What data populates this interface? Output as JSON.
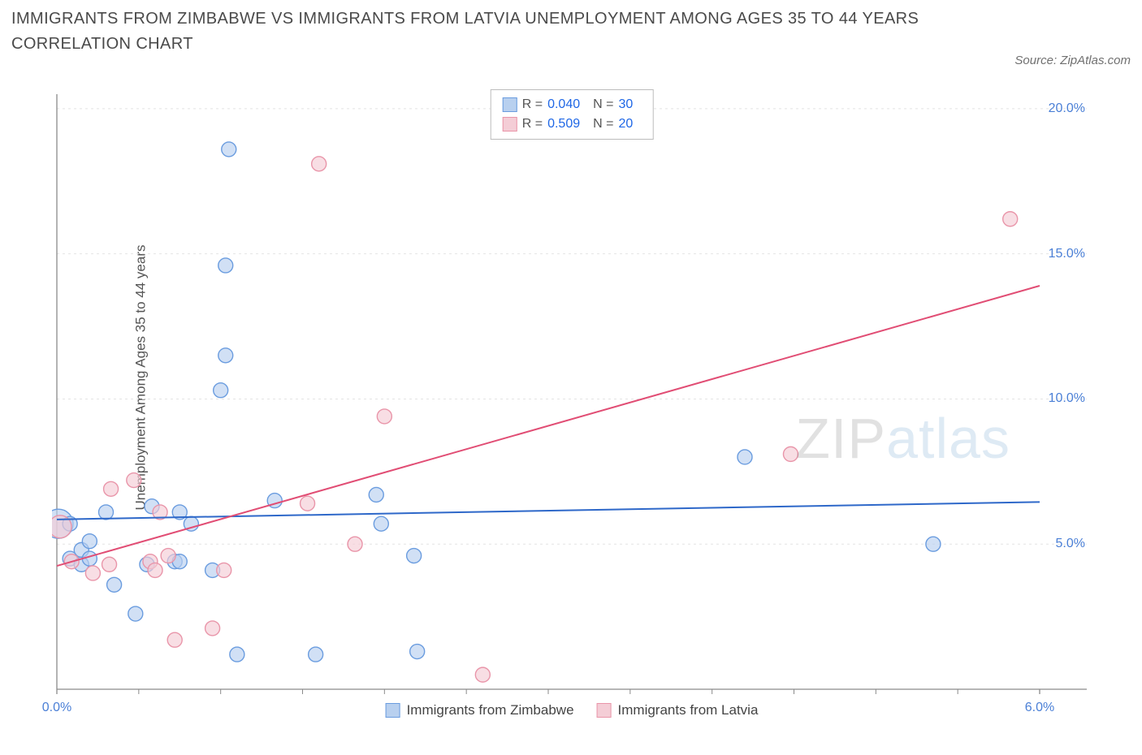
{
  "chart": {
    "type": "scatter-with-regression",
    "title": "IMMIGRANTS FROM ZIMBABWE VS IMMIGRANTS FROM LATVIA UNEMPLOYMENT AMONG AGES 35 TO 44 YEARS CORRELATION CHART",
    "source_prefix": "Source: ",
    "source_name": "ZipAtlas.com",
    "y_axis_label": "Unemployment Among Ages 35 to 44 years",
    "background_color": "#ffffff",
    "grid_color": "#e4e4e4",
    "axis_line_color": "#8a8a8a",
    "tick_label_color": "#4a7fd6",
    "x_axis": {
      "min": 0.0,
      "max": 6.0,
      "ticks": [
        0.0,
        6.0
      ],
      "tick_labels": [
        "0.0%",
        "6.0%"
      ],
      "minor_ticks": [
        0.5,
        1.0,
        1.5,
        2.0,
        2.5,
        3.0,
        3.5,
        4.0,
        4.5,
        5.0,
        5.5
      ]
    },
    "y_axis": {
      "min": 0.0,
      "max": 20.5,
      "ticks": [
        5.0,
        10.0,
        15.0,
        20.0
      ],
      "tick_labels": [
        "5.0%",
        "10.0%",
        "15.0%",
        "20.0%"
      ]
    },
    "series": [
      {
        "name": "Immigrants from Zimbabwe",
        "color_fill": "#b8d0ef",
        "color_stroke": "#6a9cdf",
        "line_color": "#2e68c9",
        "line_width": 2,
        "marker_radius": 9,
        "marker_opacity": 0.65,
        "stats": {
          "R": "0.040",
          "N": "30"
        },
        "regression": {
          "x1": 0.0,
          "y1": 5.85,
          "x2": 6.0,
          "y2": 6.45
        },
        "points": [
          {
            "x": 0.01,
            "y": 5.7,
            "r": 18
          },
          {
            "x": 0.08,
            "y": 5.7
          },
          {
            "x": 0.08,
            "y": 4.5
          },
          {
            "x": 0.15,
            "y": 4.8
          },
          {
            "x": 0.15,
            "y": 4.3
          },
          {
            "x": 0.2,
            "y": 5.1
          },
          {
            "x": 0.2,
            "y": 4.5
          },
          {
            "x": 0.3,
            "y": 6.1
          },
          {
            "x": 0.35,
            "y": 3.6
          },
          {
            "x": 0.48,
            "y": 2.6
          },
          {
            "x": 0.55,
            "y": 4.3
          },
          {
            "x": 0.58,
            "y": 6.3
          },
          {
            "x": 0.72,
            "y": 4.4
          },
          {
            "x": 0.75,
            "y": 4.4
          },
          {
            "x": 0.75,
            "y": 6.1
          },
          {
            "x": 0.82,
            "y": 5.7
          },
          {
            "x": 0.95,
            "y": 4.1
          },
          {
            "x": 1.0,
            "y": 10.3
          },
          {
            "x": 1.03,
            "y": 11.5
          },
          {
            "x": 1.03,
            "y": 14.6
          },
          {
            "x": 1.05,
            "y": 18.6
          },
          {
            "x": 1.1,
            "y": 1.2
          },
          {
            "x": 1.33,
            "y": 6.5
          },
          {
            "x": 1.58,
            "y": 1.2
          },
          {
            "x": 1.95,
            "y": 6.7
          },
          {
            "x": 1.98,
            "y": 5.7
          },
          {
            "x": 2.18,
            "y": 4.6
          },
          {
            "x": 2.2,
            "y": 1.3
          },
          {
            "x": 4.2,
            "y": 8.0
          },
          {
            "x": 5.35,
            "y": 5.0
          }
        ]
      },
      {
        "name": "Immigrants from Latvia",
        "color_fill": "#f4cdd6",
        "color_stroke": "#e995a9",
        "line_color": "#e14d74",
        "line_width": 2,
        "marker_radius": 9,
        "marker_opacity": 0.65,
        "stats": {
          "R": "0.509",
          "N": "20"
        },
        "regression": {
          "x1": 0.0,
          "y1": 4.25,
          "x2": 6.0,
          "y2": 13.9
        },
        "points": [
          {
            "x": 0.02,
            "y": 5.6,
            "r": 14
          },
          {
            "x": 0.09,
            "y": 4.4
          },
          {
            "x": 0.22,
            "y": 4.0
          },
          {
            "x": 0.32,
            "y": 4.3
          },
          {
            "x": 0.33,
            "y": 6.9
          },
          {
            "x": 0.47,
            "y": 7.2
          },
          {
            "x": 0.57,
            "y": 4.4
          },
          {
            "x": 0.6,
            "y": 4.1
          },
          {
            "x": 0.63,
            "y": 6.1
          },
          {
            "x": 0.68,
            "y": 4.6
          },
          {
            "x": 0.72,
            "y": 1.7
          },
          {
            "x": 0.95,
            "y": 2.1
          },
          {
            "x": 1.02,
            "y": 4.1
          },
          {
            "x": 1.53,
            "y": 6.4
          },
          {
            "x": 1.6,
            "y": 18.1
          },
          {
            "x": 1.82,
            "y": 5.0
          },
          {
            "x": 2.0,
            "y": 9.4
          },
          {
            "x": 2.6,
            "y": 0.5
          },
          {
            "x": 4.48,
            "y": 8.1
          },
          {
            "x": 5.82,
            "y": 16.2
          }
        ]
      }
    ],
    "legend_bottom": [
      {
        "label": "Immigrants from Zimbabwe",
        "fill": "#b8d0ef",
        "stroke": "#6a9cdf"
      },
      {
        "label": "Immigrants from Latvia",
        "fill": "#f4cdd6",
        "stroke": "#e995a9"
      }
    ],
    "watermark": {
      "part1": "ZIP",
      "part2": "atlas"
    }
  }
}
